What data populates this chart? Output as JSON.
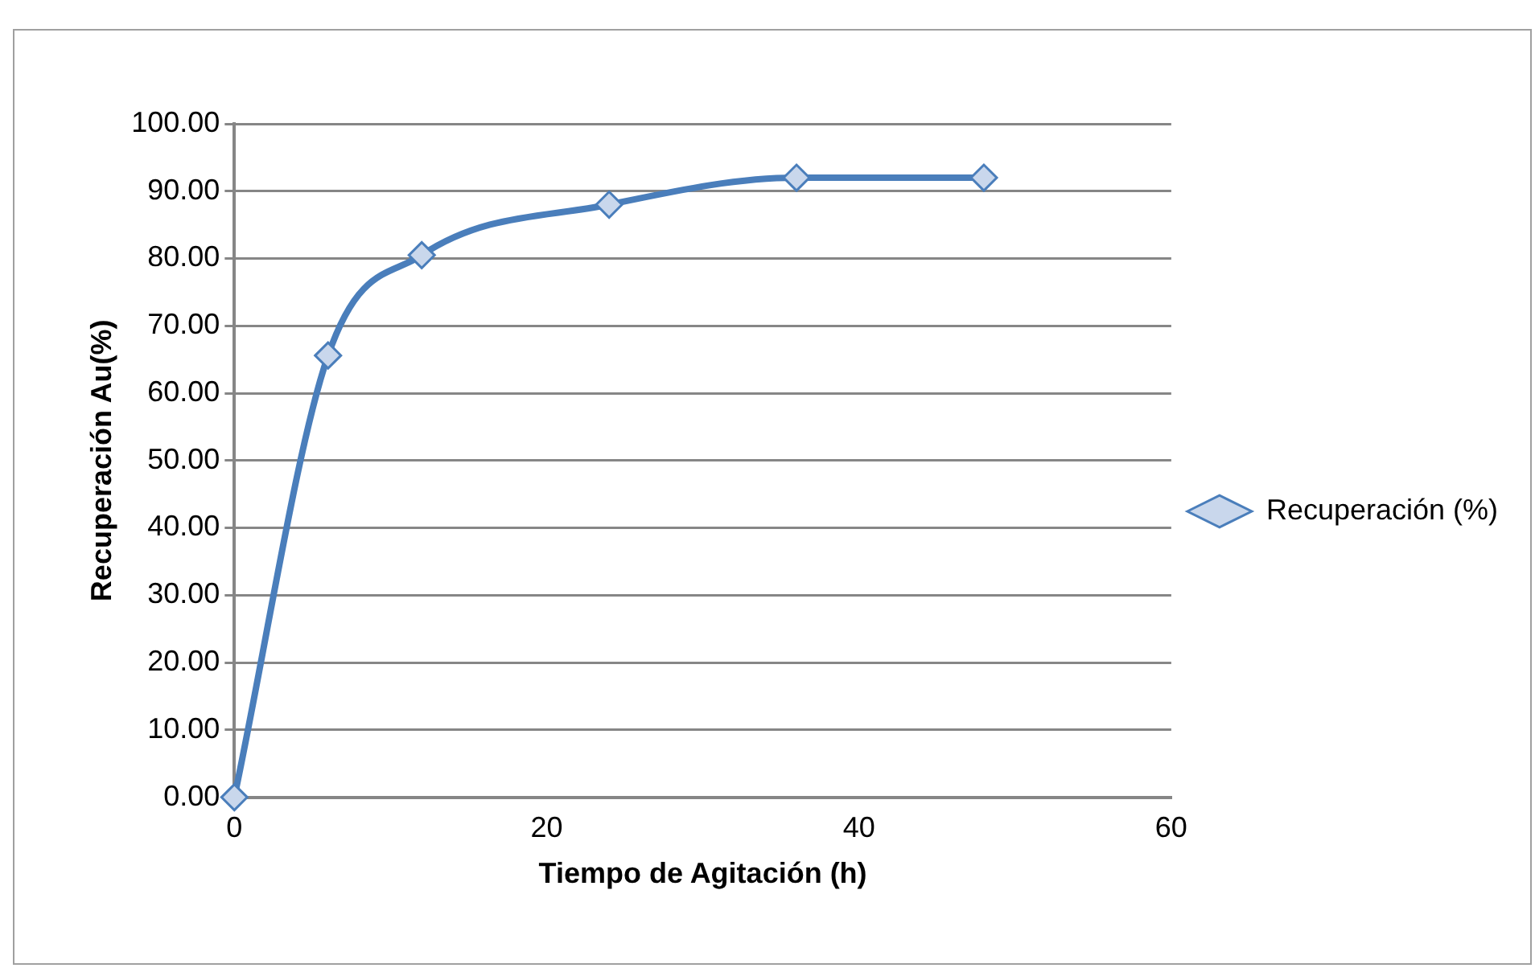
{
  "chart_data": {
    "type": "line",
    "xlabel": "Tiempo de Agitación (h)",
    "ylabel": "Recuperación Au(%)",
    "x": [
      0,
      6,
      12,
      24,
      36,
      48
    ],
    "series": [
      {
        "name": "Recuperación (%)",
        "color": "#4a7ebb",
        "values": [
          0,
          65.6,
          80.5,
          88.0,
          92.0,
          92.0
        ]
      }
    ],
    "xlim": [
      0,
      60
    ],
    "xticks": [
      0,
      20,
      40,
      60
    ],
    "ylim": [
      0,
      100
    ],
    "yticks": [
      {
        "value": 0,
        "label": "0.00"
      },
      {
        "value": 10,
        "label": "10.00"
      },
      {
        "value": 20,
        "label": "20.00"
      },
      {
        "value": 30,
        "label": "30.00"
      },
      {
        "value": 40,
        "label": "40.00"
      },
      {
        "value": 50,
        "label": "50.00"
      },
      {
        "value": 60,
        "label": "60.00"
      },
      {
        "value": 70,
        "label": "70.00"
      },
      {
        "value": 80,
        "label": "80.00"
      },
      {
        "value": 90,
        "label": "90.00"
      },
      {
        "value": 100,
        "label": "100.00"
      }
    ],
    "grid": "y",
    "legend": "right",
    "marker": "diamond",
    "line_style": "solid"
  }
}
